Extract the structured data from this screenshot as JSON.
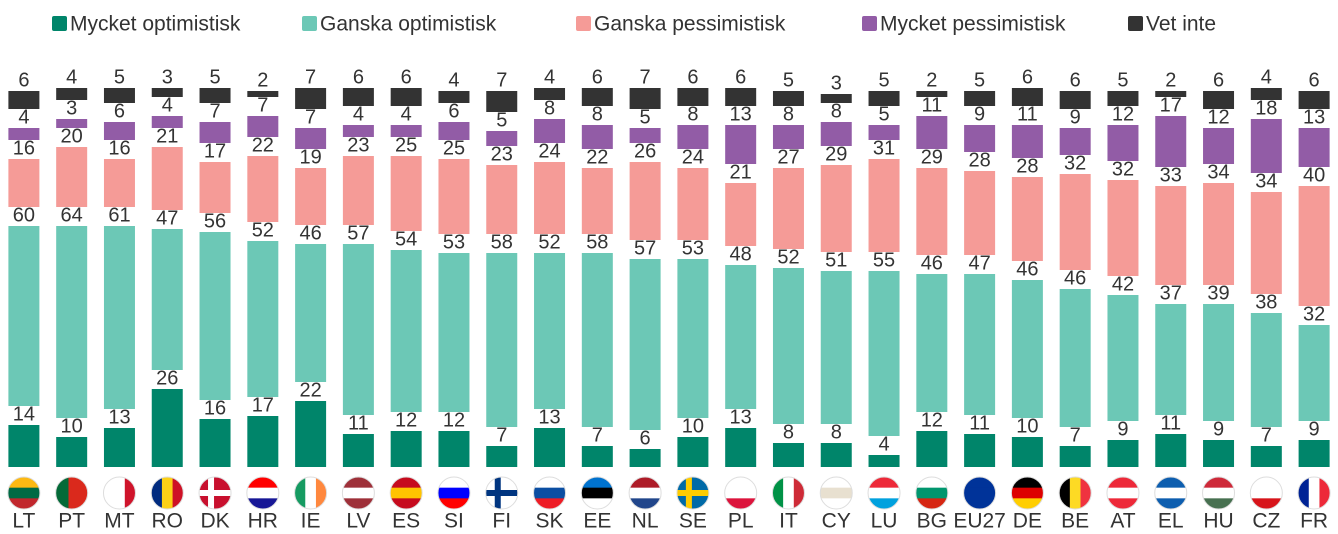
{
  "chart_data": {
    "type": "stacked_bar",
    "categories": [
      "LT",
      "PT",
      "MT",
      "RO",
      "DK",
      "HR",
      "IE",
      "LV",
      "ES",
      "SI",
      "FI",
      "SK",
      "EE",
      "NL",
      "SE",
      "PL",
      "IT",
      "CY",
      "LU",
      "BG",
      "EU27",
      "DE",
      "BE",
      "AT",
      "EL",
      "HU",
      "CZ",
      "FR"
    ],
    "series": [
      {
        "name": "Mycket optimistisk",
        "color": "#00856a",
        "values": [
          14,
          10,
          13,
          26,
          16,
          17,
          22,
          11,
          12,
          12,
          7,
          13,
          7,
          6,
          10,
          13,
          8,
          8,
          4,
          12,
          11,
          10,
          7,
          9,
          11,
          9,
          7,
          9
        ]
      },
      {
        "name": "Ganska optimistisk",
        "color": "#6cc8b6",
        "values": [
          60,
          64,
          61,
          47,
          56,
          52,
          46,
          57,
          54,
          53,
          58,
          52,
          58,
          57,
          53,
          48,
          52,
          51,
          55,
          46,
          47,
          46,
          46,
          42,
          37,
          39,
          38,
          32
        ]
      },
      {
        "name": "Ganska pessimistisk",
        "color": "#f59b97",
        "values": [
          16,
          20,
          16,
          21,
          17,
          22,
          19,
          23,
          25,
          25,
          23,
          24,
          22,
          26,
          24,
          21,
          27,
          29,
          31,
          29,
          28,
          28,
          32,
          32,
          33,
          34,
          34,
          40
        ]
      },
      {
        "name": "Mycket pessimistisk",
        "color": "#925ca6",
        "values": [
          4,
          3,
          6,
          4,
          7,
          7,
          7,
          4,
          4,
          6,
          5,
          8,
          8,
          5,
          8,
          13,
          8,
          8,
          5,
          11,
          9,
          11,
          9,
          12,
          17,
          12,
          18,
          13
        ]
      },
      {
        "name": "Vet inte",
        "color": "#333333",
        "values": [
          6,
          4,
          5,
          3,
          5,
          2,
          7,
          6,
          6,
          4,
          7,
          4,
          6,
          7,
          6,
          6,
          5,
          3,
          5,
          2,
          5,
          6,
          6,
          5,
          2,
          6,
          4,
          6
        ]
      }
    ],
    "legend": "top"
  }
}
